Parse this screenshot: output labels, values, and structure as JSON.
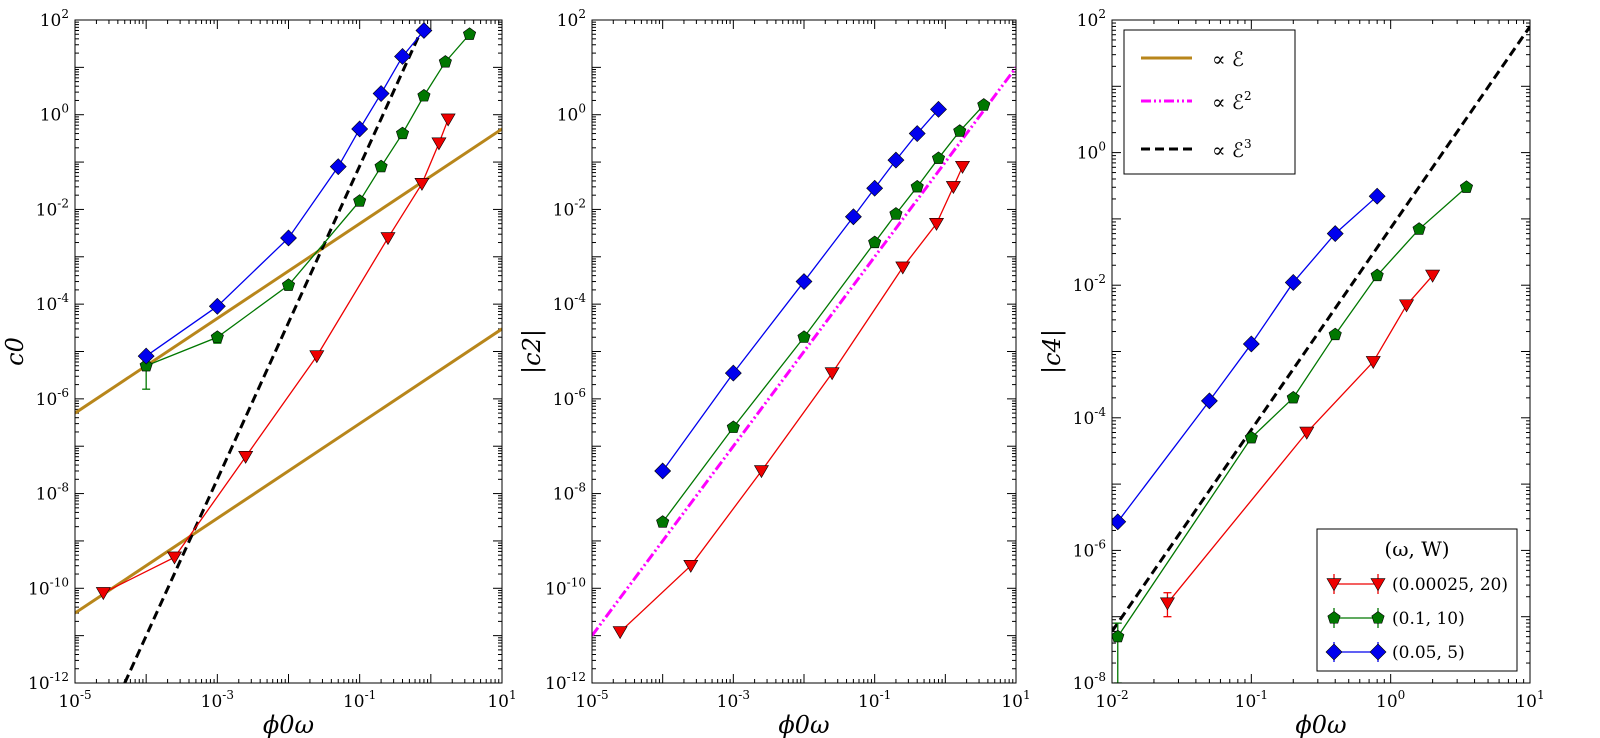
{
  "figure": {
    "legend_style": {
      "E1": "∝ ℰ",
      "E2": "∝ ℰ",
      "E3": "∝ ℰ",
      "E2_sup": "2",
      "E3_sup": "3"
    },
    "legend_markers": {
      "title": "(ω, W)"
    }
  },
  "colors": {
    "red": "#ee0000",
    "green": "#007700",
    "blue": "#0000ee",
    "gold": "#b8861b",
    "magenta": "#ff00ff",
    "black": "#000000"
  },
  "chart_data": [
    {
      "type": "line",
      "panel": "left",
      "xscale": "log",
      "yscale": "log",
      "xlim": [
        1e-05,
        10
      ],
      "ylim": [
        1e-12,
        100
      ],
      "xlabel": "ϕ0ω",
      "ylabel": "c0",
      "x_ticks": [
        {
          "base": "10",
          "exp": "-5",
          "value": 1e-05
        },
        {
          "base": "10",
          "exp": "-3",
          "value": 0.001
        },
        {
          "base": "10",
          "exp": "-1",
          "value": 0.1
        },
        {
          "base": "10",
          "exp": "1",
          "value": 10
        }
      ],
      "y_ticks": [
        {
          "base": "10",
          "exp": "-12",
          "value": 1e-12
        },
        {
          "base": "10",
          "exp": "-10",
          "value": 1e-10
        },
        {
          "base": "10",
          "exp": "-8",
          "value": 1e-08
        },
        {
          "base": "10",
          "exp": "-6",
          "value": 1e-06
        },
        {
          "base": "10",
          "exp": "-4",
          "value": 0.0001
        },
        {
          "base": "10",
          "exp": "-2",
          "value": 0.01
        },
        {
          "base": "10",
          "exp": "0",
          "value": 1
        },
        {
          "base": "10",
          "exp": "2",
          "value": 100
        }
      ],
      "series": [
        {
          "name": "(0.00025, 20)",
          "color": "red",
          "marker": "triangle-down",
          "x": [
            2.5e-05,
            0.00025,
            0.0025,
            0.025,
            0.25,
            0.75,
            1.3,
            1.75
          ],
          "y": [
            8e-11,
            4.5e-10,
            6e-08,
            8e-06,
            0.0025,
            0.035,
            0.25,
            0.8
          ]
        },
        {
          "name": "(0.1, 10)",
          "color": "green",
          "marker": "pentagon",
          "x": [
            0.0001,
            0.001,
            0.01,
            0.1,
            0.2,
            0.4,
            0.8,
            1.6,
            3.5
          ],
          "y": [
            5e-06,
            2e-05,
            0.00025,
            0.015,
            0.08,
            0.4,
            2.5,
            13,
            50
          ],
          "err": [
            {
              "index": 0,
              "low": 1.6e-06,
              "high": 6e-06
            },
            {
              "index": 1,
              "low": 1.5e-05,
              "high": 2.4e-05
            }
          ]
        },
        {
          "name": "(0.05, 5)",
          "color": "blue",
          "marker": "diamond",
          "x": [
            0.0001,
            0.001,
            0.01,
            0.05,
            0.1,
            0.2,
            0.4,
            0.8
          ],
          "y": [
            8e-06,
            9e-05,
            0.0025,
            0.08,
            0.5,
            2.8,
            17,
            60
          ]
        }
      ],
      "reference_lines": [
        {
          "name": "∝ ℰ (upper)",
          "color": "gold",
          "style": "solid",
          "x": [
            1e-05,
            10
          ],
          "y": [
            5e-07,
            0.5
          ]
        },
        {
          "name": "∝ ℰ (lower)",
          "color": "gold",
          "style": "solid",
          "x": [
            1e-05,
            10
          ],
          "y": [
            3e-11,
            3e-05
          ]
        },
        {
          "name": "∝ ℰ³",
          "color": "black",
          "style": "dashed",
          "x": [
            5e-05,
            0.8
          ],
          "y": [
            1e-12,
            80
          ]
        }
      ]
    },
    {
      "type": "line",
      "panel": "middle",
      "xscale": "log",
      "yscale": "log",
      "xlim": [
        1e-05,
        10
      ],
      "ylim": [
        1e-12,
        100
      ],
      "xlabel": "ϕ0ω",
      "ylabel": "|c2|",
      "x_ticks": [
        {
          "base": "10",
          "exp": "-5",
          "value": 1e-05
        },
        {
          "base": "10",
          "exp": "-3",
          "value": 0.001
        },
        {
          "base": "10",
          "exp": "-1",
          "value": 0.1
        },
        {
          "base": "10",
          "exp": "1",
          "value": 10
        }
      ],
      "y_ticks": [
        {
          "base": "10",
          "exp": "-12",
          "value": 1e-12
        },
        {
          "base": "10",
          "exp": "-10",
          "value": 1e-10
        },
        {
          "base": "10",
          "exp": "-8",
          "value": 1e-08
        },
        {
          "base": "10",
          "exp": "-6",
          "value": 1e-06
        },
        {
          "base": "10",
          "exp": "-4",
          "value": 0.0001
        },
        {
          "base": "10",
          "exp": "-2",
          "value": 0.01
        },
        {
          "base": "10",
          "exp": "0",
          "value": 1
        },
        {
          "base": "10",
          "exp": "2",
          "value": 100
        }
      ],
      "series": [
        {
          "name": "(0.00025, 20)",
          "color": "red",
          "marker": "triangle-down",
          "x": [
            2.5e-05,
            0.00025,
            0.0025,
            0.025,
            0.25,
            0.75,
            1.3,
            1.75
          ],
          "y": [
            1.2e-11,
            3e-10,
            3e-08,
            3.5e-06,
            0.0006,
            0.005,
            0.03,
            0.08
          ]
        },
        {
          "name": "(0.1, 10)",
          "color": "green",
          "marker": "pentagon",
          "x": [
            0.0001,
            0.001,
            0.01,
            0.1,
            0.2,
            0.4,
            0.8,
            1.6,
            3.5
          ],
          "y": [
            2.5e-09,
            2.5e-07,
            2e-05,
            0.002,
            0.008,
            0.03,
            0.12,
            0.45,
            1.6
          ]
        },
        {
          "name": "(0.05, 5)",
          "color": "blue",
          "marker": "diamond",
          "x": [
            0.0001,
            0.001,
            0.01,
            0.05,
            0.1,
            0.2,
            0.4,
            0.8
          ],
          "y": [
            3e-08,
            3.5e-06,
            0.0003,
            0.007,
            0.028,
            0.11,
            0.4,
            1.3
          ]
        }
      ],
      "reference_lines": [
        {
          "name": "∝ ℰ²",
          "color": "magenta",
          "style": "dashdot",
          "x": [
            1e-05,
            10
          ],
          "y": [
            1e-11,
            10
          ]
        }
      ]
    },
    {
      "type": "line",
      "panel": "right",
      "xscale": "log",
      "yscale": "log",
      "xlim": [
        0.01,
        10
      ],
      "ylim": [
        1e-08,
        100
      ],
      "xlabel": "ϕ0ω",
      "ylabel": "|c4|",
      "x_ticks": [
        {
          "base": "10",
          "exp": "-2",
          "value": 0.01
        },
        {
          "base": "10",
          "exp": "-1",
          "value": 0.1
        },
        {
          "base": "10",
          "exp": "0",
          "value": 1
        },
        {
          "base": "10",
          "exp": "1",
          "value": 10
        }
      ],
      "y_ticks": [
        {
          "base": "10",
          "exp": "-8",
          "value": 1e-08
        },
        {
          "base": "10",
          "exp": "-6",
          "value": 1e-06
        },
        {
          "base": "10",
          "exp": "-4",
          "value": 0.0001
        },
        {
          "base": "10",
          "exp": "-2",
          "value": 0.01
        },
        {
          "base": "10",
          "exp": "0",
          "value": 1
        },
        {
          "base": "10",
          "exp": "2",
          "value": 100
        }
      ],
      "series": [
        {
          "name": "(0.00025, 20)",
          "color": "red",
          "marker": "triangle-down",
          "x": [
            0.025,
            0.25,
            0.75,
            1.3,
            2.0
          ],
          "y": [
            1.6e-07,
            6e-05,
            0.0007,
            0.005,
            0.014
          ],
          "err": [
            {
              "index": 0,
              "low": 1e-07,
              "high": 2.3e-07
            }
          ]
        },
        {
          "name": "(0.1, 10)",
          "color": "green",
          "marker": "pentagon",
          "x": [
            0.011,
            0.1,
            0.2,
            0.4,
            0.8,
            1.6,
            3.5
          ],
          "y": [
            5e-08,
            5e-05,
            0.0002,
            0.0018,
            0.014,
            0.07,
            0.3
          ],
          "err": [
            {
              "index": 0,
              "low": 1e-08,
              "high": 8e-08
            }
          ]
        },
        {
          "name": "(0.05, 5)",
          "color": "blue",
          "marker": "diamond",
          "x": [
            0.011,
            0.05,
            0.1,
            0.2,
            0.4,
            0.8
          ],
          "y": [
            2.7e-06,
            0.00018,
            0.0013,
            0.011,
            0.06,
            0.22
          ]
        }
      ],
      "reference_lines": [
        {
          "name": "∝ ℰ³",
          "color": "black",
          "style": "dashed",
          "x": [
            0.01,
            10
          ],
          "y": [
            6e-08,
            80
          ]
        }
      ]
    }
  ]
}
